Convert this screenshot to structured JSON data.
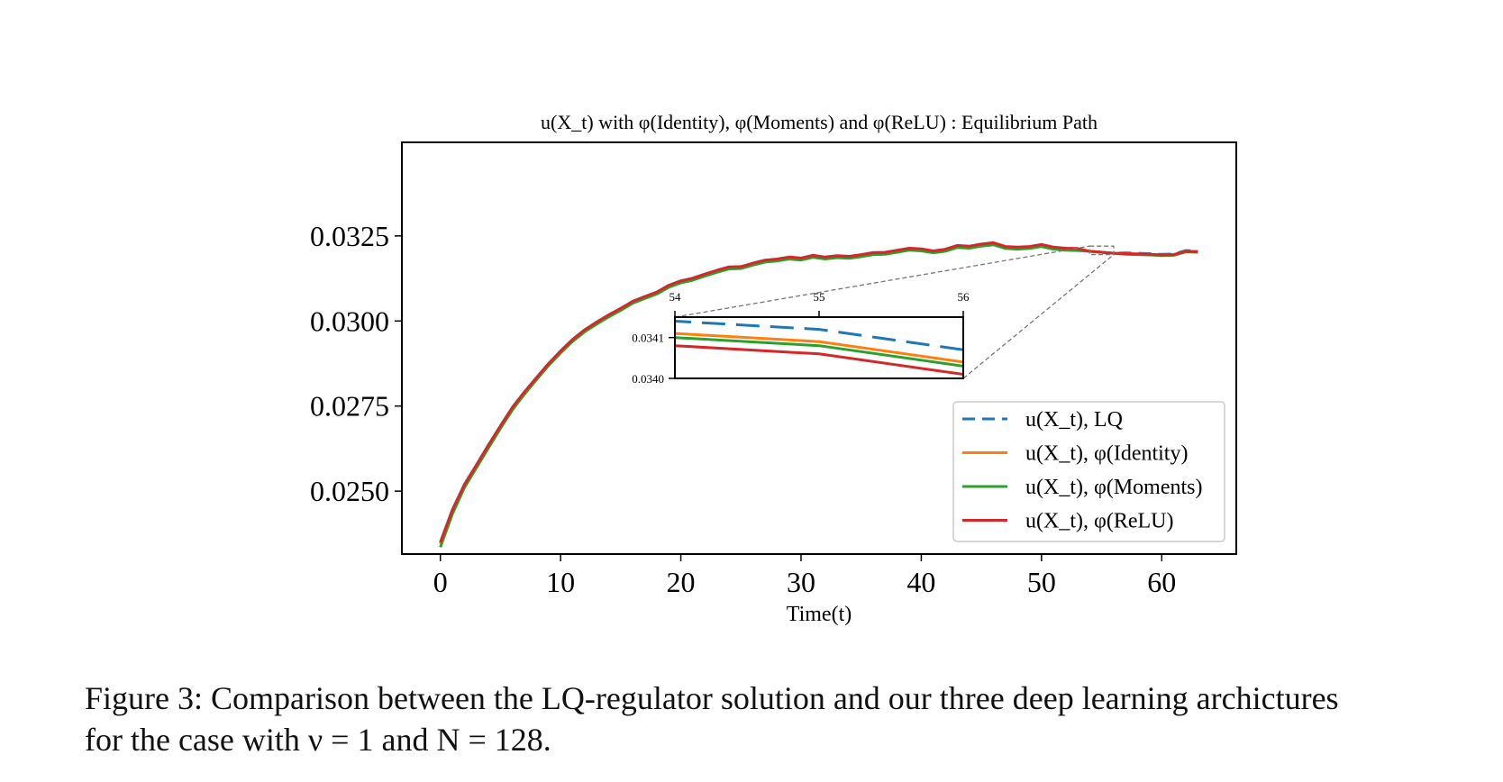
{
  "chart_data": {
    "type": "line",
    "title": "u(X_t) with φ(Identity), φ(Moments) and φ(ReLU) : Equilibrium Path",
    "xlabel": "Time(t)",
    "ylabel": "",
    "xlim": [
      -3.2,
      66.2
    ],
    "ylim": [
      0.02315,
      0.03525
    ],
    "xticks": [
      0,
      10,
      20,
      30,
      40,
      50,
      60
    ],
    "yticks": [
      0.025,
      0.0275,
      0.03,
      0.0325
    ],
    "ytick_labels": [
      "0.0250",
      "0.0275",
      "0.0300",
      "0.0325"
    ],
    "grid": false,
    "legend_position": "lower right",
    "x": [
      0,
      1,
      2,
      3,
      4,
      5,
      6,
      7,
      8,
      9,
      10,
      11,
      12,
      13,
      14,
      15,
      16,
      17,
      18,
      19,
      20,
      21,
      22,
      23,
      24,
      25,
      26,
      27,
      28,
      29,
      30,
      31,
      32,
      33,
      34,
      35,
      36,
      37,
      38,
      39,
      40,
      41,
      42,
      43,
      44,
      45,
      46,
      47,
      48,
      49,
      50,
      51,
      52,
      53,
      54,
      55,
      56,
      57,
      58,
      59,
      60,
      61,
      62,
      63
    ],
    "series": [
      {
        "name": "u(X_t), LQ",
        "color": "#1f77b4",
        "dashed": true,
        "values": [
          0.02348,
          0.02443,
          0.02518,
          0.02575,
          0.02634,
          0.0269,
          0.02745,
          0.0279,
          0.02832,
          0.02873,
          0.0291,
          0.02944,
          0.02972,
          0.02995,
          0.03016,
          0.03035,
          0.03056,
          0.0307,
          0.03083,
          0.03103,
          0.03116,
          0.03124,
          0.03136,
          0.03147,
          0.03157,
          0.03158,
          0.03168,
          0.03177,
          0.0318,
          0.03186,
          0.03183,
          0.03191,
          0.03186,
          0.0319,
          0.03188,
          0.03193,
          0.03199,
          0.032,
          0.03206,
          0.03212,
          0.0321,
          0.03204,
          0.03209,
          0.0322,
          0.03218,
          0.03224,
          0.03228,
          0.03217,
          0.03215,
          0.03217,
          0.03223,
          0.03215,
          0.03212,
          0.03211,
          0.03414,
          0.03412,
          0.03407,
          0.032,
          0.03199,
          0.03198,
          0.03196,
          0.03197,
          0.03207,
          0.03206
        ]
      },
      {
        "name": "u(X_t), φ(Identity)",
        "color": "#ff7f0e",
        "dashed": false,
        "values": [
          0.02345,
          0.0244,
          0.02516,
          0.02573,
          0.02632,
          0.02688,
          0.02743,
          0.02788,
          0.0283,
          0.02871,
          0.02908,
          0.02942,
          0.0297,
          0.02993,
          0.03014,
          0.03033,
          0.03054,
          0.03068,
          0.03081,
          0.03101,
          0.03114,
          0.03122,
          0.03134,
          0.03145,
          0.03155,
          0.03156,
          0.03166,
          0.03175,
          0.03178,
          0.03184,
          0.03181,
          0.03189,
          0.03184,
          0.03188,
          0.03186,
          0.03191,
          0.03197,
          0.03198,
          0.03204,
          0.0321,
          0.03208,
          0.03202,
          0.03207,
          0.03218,
          0.03216,
          0.03222,
          0.03226,
          0.03215,
          0.03213,
          0.03215,
          0.03221,
          0.03213,
          0.0321,
          0.03209,
          0.03411,
          0.03409,
          0.03404,
          0.03198,
          0.03197,
          0.03196,
          0.03194,
          0.03195,
          0.03205,
          0.03204
        ]
      },
      {
        "name": "u(X_t), φ(Moments)",
        "color": "#2ca02c",
        "dashed": false,
        "values": [
          0.02335,
          0.02432,
          0.0251,
          0.02568,
          0.02627,
          0.02684,
          0.02739,
          0.02785,
          0.02827,
          0.02869,
          0.02906,
          0.0294,
          0.02968,
          0.02991,
          0.03012,
          0.03031,
          0.03052,
          0.03066,
          0.03079,
          0.03099,
          0.03112,
          0.0312,
          0.03132,
          0.03143,
          0.03153,
          0.03154,
          0.03164,
          0.03173,
          0.03176,
          0.03182,
          0.03179,
          0.03187,
          0.03182,
          0.03186,
          0.03184,
          0.03189,
          0.03195,
          0.03196,
          0.03202,
          0.03208,
          0.03206,
          0.032,
          0.03205,
          0.03216,
          0.03214,
          0.0322,
          0.03224,
          0.03213,
          0.03211,
          0.03213,
          0.03219,
          0.03211,
          0.03208,
          0.03207,
          0.0341,
          0.03408,
          0.03403,
          0.03196,
          0.03195,
          0.03194,
          0.03192,
          0.03193,
          0.03203,
          0.03202
        ]
      },
      {
        "name": "u(X_t), φ(ReLU)",
        "color": "#d62728",
        "dashed": false,
        "values": [
          0.0235,
          0.02445,
          0.0252,
          0.02577,
          0.02636,
          0.02692,
          0.02747,
          0.02792,
          0.02834,
          0.02875,
          0.02912,
          0.02946,
          0.02974,
          0.02997,
          0.03018,
          0.03037,
          0.03058,
          0.03072,
          0.03085,
          0.03105,
          0.03118,
          0.03126,
          0.03138,
          0.03149,
          0.03159,
          0.0316,
          0.0317,
          0.03179,
          0.03182,
          0.03188,
          0.03185,
          0.03193,
          0.03188,
          0.03192,
          0.0319,
          0.03195,
          0.03201,
          0.03202,
          0.03208,
          0.03214,
          0.03212,
          0.03206,
          0.03211,
          0.03222,
          0.0322,
          0.03226,
          0.0323,
          0.03219,
          0.03217,
          0.03219,
          0.03225,
          0.03217,
          0.03214,
          0.03213,
          0.03408,
          0.03406,
          0.03401,
          0.03198,
          0.03197,
          0.03196,
          0.03194,
          0.03195,
          0.03205,
          0.03204
        ]
      }
    ],
    "inset": {
      "xlim": [
        54,
        56
      ],
      "ylim": [
        0.034,
        0.03415
      ],
      "xticks": [
        "54",
        "55",
        "56"
      ],
      "yticks": [
        "0.0340",
        "0.0341"
      ]
    }
  },
  "caption": {
    "line1": "Figure 3: Comparison between the LQ-regulator solution and our three deep learning archictures",
    "line2": "for the case with ν = 1 and N = 128."
  }
}
